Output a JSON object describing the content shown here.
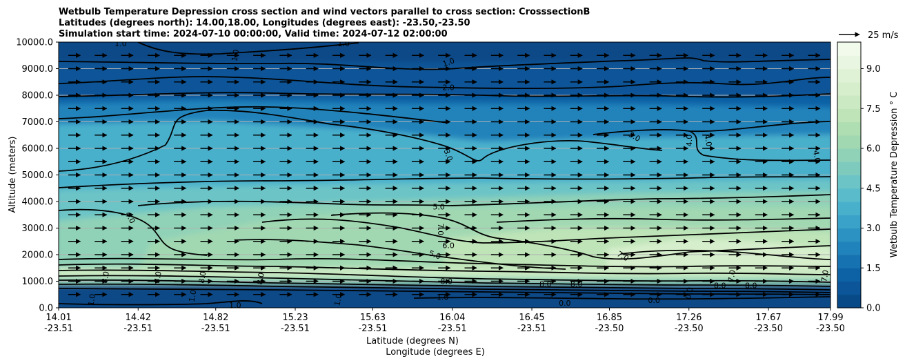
{
  "chart_data": {
    "type": "contour",
    "title_lines": [
      "Wetbulb Temperature Depression cross section and wind vectors parallel to cross section: CrosssectionB",
      "Latitudes (degrees north): 14.00,18.00, Longitudes (degrees east): -23.50,-23.50",
      "Simulation start time: 2024-07-10 00:00:00, Valid time: 2024-07-12 02:00:00"
    ],
    "ylabel": "Altitude (meters)",
    "xlabel_lat": "Latitude (degrees N)",
    "xlabel_lon": "Longitude (degrees E)",
    "ylim": [
      0,
      10000
    ],
    "y_ticks": [
      "0.0",
      "1000.0",
      "2000.0",
      "3000.0",
      "4000.0",
      "5000.0",
      "6000.0",
      "7000.0",
      "8000.0",
      "9000.0",
      "10000.0"
    ],
    "x_ticks": [
      {
        "lat": "14.01",
        "lon": "-23.51"
      },
      {
        "lat": "14.42",
        "lon": "-23.51"
      },
      {
        "lat": "14.82",
        "lon": "-23.51"
      },
      {
        "lat": "15.23",
        "lon": "-23.51"
      },
      {
        "lat": "15.63",
        "lon": "-23.51"
      },
      {
        "lat": "16.04",
        "lon": "-23.51"
      },
      {
        "lat": "16.45",
        "lon": "-23.51"
      },
      {
        "lat": "16.85",
        "lon": "-23.50"
      },
      {
        "lat": "17.26",
        "lon": "-23.50"
      },
      {
        "lat": "17.67",
        "lon": "-23.50"
      },
      {
        "lat": "17.99",
        "lon": "-23.50"
      }
    ],
    "grid": "horizontal",
    "colorbar": {
      "label": "Wetbulb Temperature Depression $^\\circ$C",
      "label_display": "Wetbulb Temperature Depression ° C",
      "range": [
        0,
        10
      ],
      "ticks": [
        "0.0",
        "1.5",
        "3.0",
        "4.5",
        "6.0",
        "7.5",
        "9.0"
      ],
      "levels": 20,
      "colors": [
        "#084a87",
        "#0b5598",
        "#0d61a5",
        "#1672b1",
        "#2183bb",
        "#2c92c1",
        "#3aa2c8",
        "#49b0cc",
        "#5abccb",
        "#6cc4c6",
        "#7ecbbe",
        "#90d2b7",
        "#a1d8b2",
        "#b0deb3",
        "#bee4b8",
        "#cbe9c2",
        "#d6eecc",
        "#e0f2d6",
        "#e9f6e2",
        "#f2faec"
      ]
    },
    "quiver_key": {
      "label": "25 m/s",
      "value": 25
    },
    "wind": {
      "u_approx": 16,
      "w_approx": 0,
      "note_rows": 19,
      "note_cols": 30
    },
    "contour_labels": [
      {
        "text": "1.0",
        "lat": 14.33,
        "alt": 9950
      },
      {
        "text": "1.0",
        "lat": 14.92,
        "alt": 9500,
        "rot": -80
      },
      {
        "text": "1.0",
        "lat": 15.48,
        "alt": 9950
      },
      {
        "text": "1.0",
        "lat": 16.02,
        "alt": 9250,
        "rot": -20
      },
      {
        "text": "2.0",
        "lat": 16.02,
        "alt": 8300
      },
      {
        "text": "3.0",
        "lat": 16.98,
        "alt": 6450,
        "rot": 30
      },
      {
        "text": "3.0",
        "lat": 16.02,
        "alt": 5750,
        "rot": 70
      },
      {
        "text": "4.0",
        "lat": 17.26,
        "alt": 6300,
        "rot": -90
      },
      {
        "text": "4.0",
        "lat": 17.36,
        "alt": 6300,
        "rot": 80
      },
      {
        "text": "4.0",
        "lat": 17.92,
        "alt": 5700,
        "rot": 80
      },
      {
        "text": "4.0",
        "lat": 14.38,
        "alt": 3400,
        "rot": 60
      },
      {
        "text": "5.0",
        "lat": 15.97,
        "alt": 3800
      },
      {
        "text": "5.0",
        "lat": 15.95,
        "alt": 2000,
        "rot": 20
      },
      {
        "text": "6.0",
        "lat": 16.02,
        "alt": 2350
      },
      {
        "text": "7.0",
        "lat": 15.98,
        "alt": 2950,
        "rot": 90
      },
      {
        "text": "7.0",
        "lat": 16.92,
        "alt": 1950,
        "rot": 30
      },
      {
        "text": "7.0",
        "lat": 17.48,
        "alt": 1200,
        "rot": -80
      },
      {
        "text": "7.0",
        "lat": 17.96,
        "alt": 1200,
        "rot": -80
      },
      {
        "text": "8.0",
        "lat": 16.01,
        "alt": 1000
      },
      {
        "text": "8.0",
        "lat": 14.25,
        "alt": 1150,
        "rot": -80
      },
      {
        "text": "8.0",
        "lat": 14.52,
        "alt": 1150,
        "rot": -80
      },
      {
        "text": "8.0",
        "lat": 14.75,
        "alt": 1150,
        "rot": -80
      },
      {
        "text": "8.0",
        "lat": 15.05,
        "alt": 1100,
        "rot": -80
      },
      {
        "text": "8.0",
        "lat": 16.52,
        "alt": 900
      },
      {
        "text": "8.0",
        "lat": 16.68,
        "alt": 900
      },
      {
        "text": "8.0",
        "lat": 17.42,
        "alt": 850
      },
      {
        "text": "8.0",
        "lat": 17.58,
        "alt": 850
      },
      {
        "text": "0.0",
        "lat": 16.62,
        "alt": 180
      },
      {
        "text": "0.0",
        "lat": 17.08,
        "alt": 280
      },
      {
        "text": "0.0",
        "lat": 17.26,
        "alt": 550,
        "rot": -80
      },
      {
        "text": "1.0",
        "lat": 14.18,
        "alt": 300,
        "rot": -80
      },
      {
        "text": "1.0",
        "lat": 14.7,
        "alt": 450,
        "rot": -80
      },
      {
        "text": "1.0",
        "lat": 15.45,
        "alt": 300,
        "rot": -80
      },
      {
        "text": "1.0",
        "lat": 15.99,
        "alt": 400
      },
      {
        "text": "1.0",
        "lat": 14.92,
        "alt": 100
      }
    ]
  }
}
